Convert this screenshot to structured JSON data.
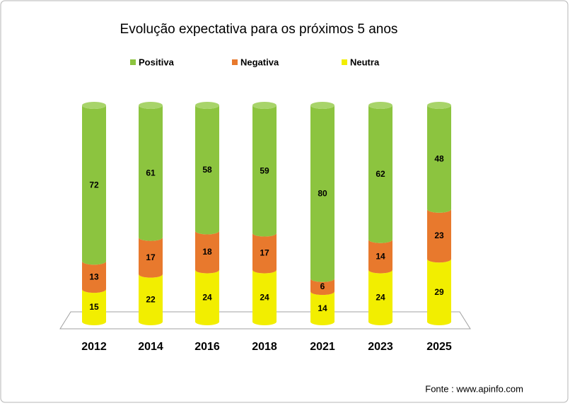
{
  "chart_data": {
    "type": "stacked-cylinder",
    "title": "Evolução expectativa para os próximos 5 anos",
    "categories": [
      "2012",
      "2014",
      "2016",
      "2018",
      "2021",
      "2023",
      "2025"
    ],
    "series": [
      {
        "name": "Neutra",
        "color": "#f2ee00",
        "values": [
          15,
          22,
          24,
          24,
          14,
          24,
          29
        ]
      },
      {
        "name": "Negativa",
        "color": "#e8792d",
        "values": [
          13,
          17,
          18,
          17,
          6,
          14,
          23
        ]
      },
      {
        "name": "Positiva",
        "color": "#8cc43f",
        "values": [
          72,
          61,
          58,
          59,
          80,
          62,
          48
        ]
      }
    ],
    "legend_order": [
      2,
      1,
      0
    ],
    "source": "Fonte : www.apinfo.com"
  }
}
